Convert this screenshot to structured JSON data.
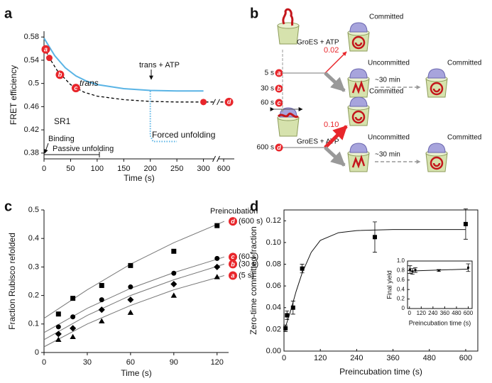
{
  "chart_data": [
    {
      "panel": "a",
      "type": "line",
      "xlabel": "Time (s)",
      "ylabel": "FRET efficiency",
      "xlim": [
        0,
        620
      ],
      "xbreak": [
        320,
        590
      ],
      "xticks": [
        0,
        50,
        100,
        150,
        200,
        250,
        300,
        600
      ],
      "ylim": [
        0.37,
        0.59
      ],
      "yticks": [
        0.38,
        0.42,
        0.46,
        0.5,
        0.54,
        0.58
      ],
      "series": [
        {
          "name": "trans",
          "color": "#5ab4e5",
          "style": "solid",
          "x": [
            0,
            20,
            40,
            60,
            80,
            100,
            150,
            200,
            250,
            300
          ],
          "values": [
            0.578,
            0.548,
            0.527,
            0.513,
            0.504,
            0.498,
            0.491,
            0.488,
            0.487,
            0.487
          ]
        },
        {
          "name": "SR1",
          "color": "#000000",
          "style": "dashed",
          "x": [
            0,
            10,
            25,
            50,
            75,
            100,
            150,
            200,
            250,
            300,
            600
          ],
          "values": [
            0.562,
            0.544,
            0.522,
            0.498,
            0.485,
            0.478,
            0.472,
            0.469,
            0.468,
            0.468,
            0.468
          ]
        },
        {
          "name": "Forced unfolding",
          "color": "#5ab4e5",
          "style": "dotted",
          "x": [
            200,
            200,
            205,
            250
          ],
          "values": [
            0.487,
            0.41,
            0.4,
            0.4
          ]
        }
      ],
      "markers": {
        "color": "#e8262b",
        "labels": [
          "a",
          "b",
          "c",
          "d"
        ],
        "x": [
          10,
          30,
          60,
          300
        ],
        "values": [
          0.544,
          0.515,
          0.492,
          0.468
        ]
      },
      "annotations": [
        "trans + ATP",
        "Binding",
        "Passive unfolding"
      ]
    },
    {
      "panel": "c",
      "type": "scatter",
      "xlabel": "Time (s)",
      "ylabel": "Fraction Rubisco refolded",
      "xlim": [
        0,
        128
      ],
      "ylim": [
        0,
        0.5
      ],
      "xticks": [
        0,
        30,
        60,
        90,
        120
      ],
      "yticks": [
        0,
        0.1,
        0.2,
        0.3,
        0.4,
        0.5
      ],
      "legend_title": "Preincubation",
      "tag_color": "#e8262b",
      "fit_color": "#777777",
      "x": [
        10,
        20,
        40,
        60,
        90,
        120
      ],
      "fit_x": [
        0,
        30,
        60,
        90,
        125
      ],
      "series": [
        {
          "name": "(600 s)",
          "tag": "d",
          "marker": "square",
          "color": "#000000",
          "values": [
            0.135,
            0.19,
            0.235,
            0.305,
            0.355,
            0.445
          ],
          "fit_values": [
            0.12,
            0.22,
            0.31,
            0.385,
            0.46
          ]
        },
        {
          "name": "(60 s)",
          "tag": "c",
          "marker": "circle",
          "color": "#000000",
          "values": [
            0.09,
            0.125,
            0.185,
            0.23,
            0.278,
            0.33
          ],
          "fit_values": [
            0.07,
            0.155,
            0.225,
            0.28,
            0.335
          ]
        },
        {
          "name": "(30 s)",
          "tag": "b",
          "marker": "diamond",
          "color": "#000000",
          "values": [
            0.065,
            0.085,
            0.15,
            0.185,
            0.24,
            0.3
          ],
          "fit_values": [
            0.045,
            0.13,
            0.2,
            0.255,
            0.31
          ]
        },
        {
          "name": "(5 s)",
          "tag": "a",
          "marker": "triangle",
          "color": "#000000",
          "values": [
            0.045,
            0.055,
            0.11,
            0.14,
            0.2,
            0.265
          ],
          "fit_values": [
            0.02,
            0.1,
            0.165,
            0.22,
            0.27
          ]
        }
      ]
    },
    {
      "panel": "d",
      "type": "scatter",
      "xlabel": "Preincubation time (s)",
      "ylabel": "Zero-time committed fraction",
      "xlim": [
        0,
        640
      ],
      "ylim": [
        0,
        0.13
      ],
      "xticks": [
        0,
        120,
        240,
        360,
        480,
        600
      ],
      "yticks": [
        {
          "value": 0,
          "label": "0.00"
        },
        0.02,
        0.04,
        0.06,
        0.08,
        {
          "value": 0.1,
          "label": "0.10"
        },
        0.12
      ],
      "frame": true,
      "color": "#000000",
      "x": [
        5,
        10,
        30,
        60,
        300,
        600
      ],
      "values": [
        0.021,
        0.033,
        0.04,
        0.076,
        0.105,
        0.117
      ],
      "errors": [
        0.003,
        0.004,
        0.006,
        0.004,
        0.014,
        0.014
      ],
      "fit": {
        "x": [
          0,
          20,
          40,
          60,
          90,
          120,
          180,
          240,
          360,
          600
        ],
        "values": [
          0.018,
          0.035,
          0.055,
          0.072,
          0.091,
          0.102,
          0.109,
          0.111,
          0.112,
          0.112
        ]
      }
    },
    {
      "type": "scatter",
      "xlabel": "Preincubation time (s)",
      "ylabel": "Final yield",
      "xlim": [
        -20,
        640
      ],
      "ylim": [
        0,
        1
      ],
      "xticks": [
        0,
        120,
        240,
        360,
        480,
        600
      ],
      "yticks": [
        0,
        0.2,
        0.4,
        0.6,
        0.8,
        {
          "value": 1,
          "label": "1.0"
        }
      ],
      "frame": true,
      "color": "#000000",
      "x": [
        5,
        30,
        60,
        300,
        600
      ],
      "values": [
        0.82,
        0.78,
        0.81,
        0.8,
        0.86
      ],
      "errors": [
        0.08,
        0.06,
        0.05,
        0.02,
        0.08
      ],
      "fit": {
        "x": [
          0,
          600
        ],
        "values": [
          0.79,
          0.83
        ]
      }
    }
  ],
  "diagram": {
    "label": "b",
    "tag_color": "#e8262b",
    "rows": [
      {
        "reagent": "GroES + ATP",
        "yield": "0.02",
        "times": [
          {
            "tag": "a",
            "text": "5 s"
          },
          {
            "tag": "b",
            "text": "30 s"
          },
          {
            "tag": "c",
            "text": "60 s"
          }
        ],
        "fast": "Committed",
        "slow": "Uncommitted",
        "delay": "~30 min",
        "final": "Committed"
      },
      {
        "reagent": "GroES + ATP",
        "yield": "0.10",
        "times": [
          {
            "tag": "d",
            "text": "600 s"
          }
        ],
        "fast": "Committed",
        "slow": "Uncommitted",
        "delay": "~30 min",
        "final": "Committed"
      }
    ]
  }
}
